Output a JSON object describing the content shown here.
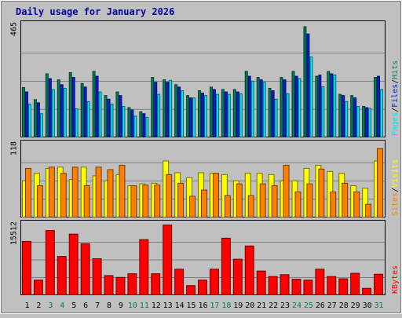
{
  "chart_data": {
    "type": "bar",
    "title": "Daily usage for January 2026",
    "categories": [
      "1",
      "2",
      "3",
      "4",
      "5",
      "6",
      "7",
      "8",
      "9",
      "10",
      "11",
      "12",
      "13",
      "14",
      "15",
      "16",
      "17",
      "18",
      "19",
      "20",
      "21",
      "22",
      "23",
      "24",
      "25",
      "26",
      "27",
      "28",
      "29",
      "30",
      "31"
    ],
    "weekend_days": [
      "3",
      "4",
      "10",
      "11",
      "17",
      "18",
      "24",
      "25",
      "31"
    ],
    "panels": [
      {
        "id": "hits-files-pages",
        "max_label": "465",
        "ylim": [
          0,
          465
        ],
        "legend": [
          "Pages",
          "Files",
          "Hits"
        ],
        "series": [
          {
            "name": "Hits",
            "color": "#00805c",
            "values": [
              208,
              158,
              265,
              240,
              270,
              225,
              275,
              175,
              190,
              125,
              108,
              250,
              240,
              220,
              175,
              195,
              210,
              200,
              200,
              275,
              250,
              205,
              250,
              275,
              460,
              255,
              275,
              180,
              175,
              130,
              250
            ]
          },
          {
            "name": "Files",
            "color": "#0020e0",
            "values": [
              190,
              145,
              245,
              220,
              250,
              210,
              255,
              160,
              175,
              115,
              100,
              230,
              230,
              210,
              165,
              185,
              200,
              190,
              190,
              255,
              240,
              195,
              240,
              255,
              430,
              260,
              265,
              175,
              165,
              125,
              255
            ]
          },
          {
            "name": "Pages",
            "color": "#00e8ff",
            "values": [
              140,
              100,
              200,
              205,
              120,
              150,
              190,
              140,
              130,
              90,
              85,
              180,
              238,
              195,
              165,
              175,
              180,
              180,
              182,
              235,
              230,
              160,
              182,
              245,
              335,
              212,
              260,
              150,
              130,
              122,
              200
            ]
          }
        ]
      },
      {
        "id": "visits-sites",
        "max_label": "118",
        "ylim": [
          0,
          118
        ],
        "legend": [
          "Sites",
          "Visits"
        ],
        "series": [
          {
            "name": "Visits",
            "color": "#ffff00",
            "values": [
              60,
              72,
              80,
              82,
              62,
              82,
              68,
              60,
              70,
              52,
              55,
              56,
              92,
              73,
              65,
              73,
              72,
              70,
              60,
              72,
              72,
              70,
              60,
              60,
              80,
              85,
              75,
              72,
              52,
              48,
              92
            ]
          },
          {
            "name": "Sites",
            "color": "#ff8000",
            "values": [
              80,
              52,
              82,
              72,
              82,
              52,
              82,
              78,
              85,
              52,
              53,
              53,
              70,
              56,
              35,
              45,
              72,
              36,
              55,
              36,
              55,
              52,
              85,
              42,
              55,
              79,
              42,
              56,
              42,
              22,
              112
            ]
          }
        ]
      },
      {
        "id": "kbytes",
        "max_label": "15512",
        "ylim": [
          0,
          15512
        ],
        "legend": [
          "KBytes"
        ],
        "series": [
          {
            "name": "KBytes",
            "color": "#ff0000",
            "values": [
              11900,
              3400,
              14300,
              8600,
              13500,
              11400,
              8100,
              4400,
              4000,
              4800,
              12300,
              4800,
              15500,
              5800,
              2200,
              3400,
              5800,
              12600,
              8000,
              10900,
              5400,
              4200,
              4600,
              3600,
              3400,
              5800,
              4200,
              3700,
              4900,
              1600,
              4700
            ]
          }
        ]
      }
    ],
    "grid": true,
    "legend_position": "right-vertical",
    "colors": {
      "background": "#c0c0c0",
      "plot_background": "#c0c0c0",
      "grid": "#808080",
      "title": "#0000a0",
      "axis_text": "#000000",
      "weekend_text": "#00805c"
    }
  }
}
